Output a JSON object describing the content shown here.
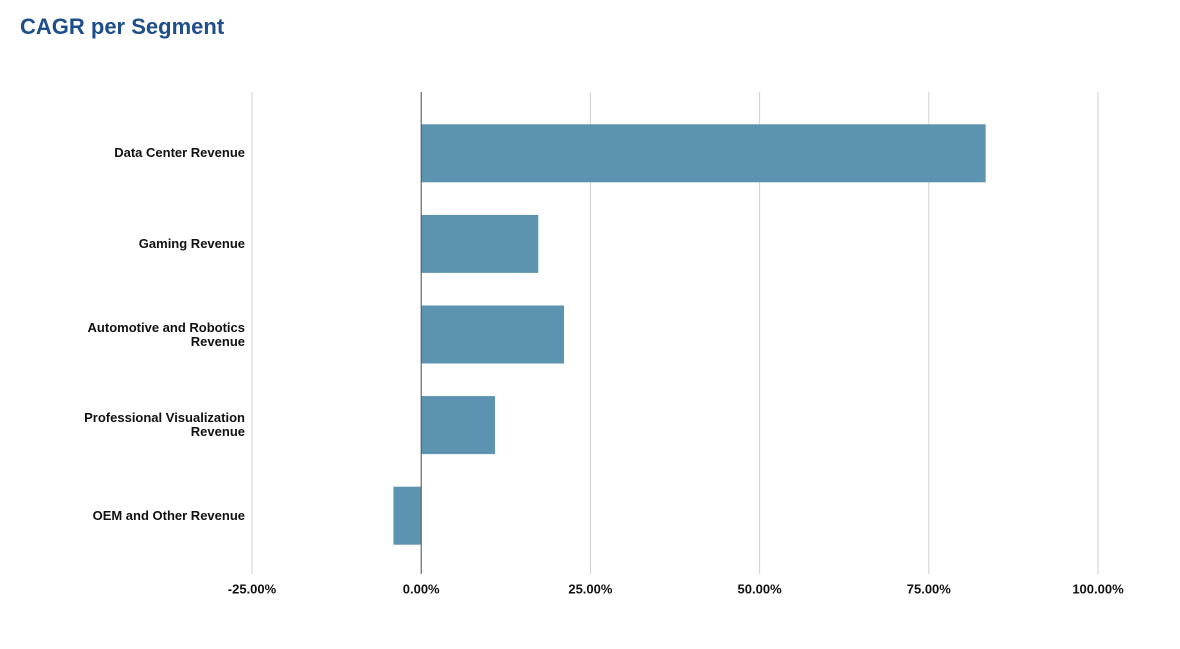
{
  "chart_data": {
    "type": "bar",
    "orientation": "horizontal",
    "title": "CAGR per Segment",
    "categories": [
      "Data Center Revenue",
      "Gaming Revenue",
      "Automotive and Robotics Revenue",
      "Professional Visualization Revenue",
      "OEM and Other Revenue"
    ],
    "values": [
      83.4,
      17.3,
      21.1,
      10.9,
      -4.1
    ],
    "color": "#5b93b0",
    "xlim": [
      -25,
      100
    ],
    "xticks": [
      {
        "value": -25,
        "label": "-25.00%"
      },
      {
        "value": 0,
        "label": "0.00%"
      },
      {
        "value": 25,
        "label": "25.00%"
      },
      {
        "value": 50,
        "label": "50.00%"
      },
      {
        "value": 75,
        "label": "75.00%"
      },
      {
        "value": 100,
        "label": "100.00%"
      }
    ],
    "grid": true
  }
}
